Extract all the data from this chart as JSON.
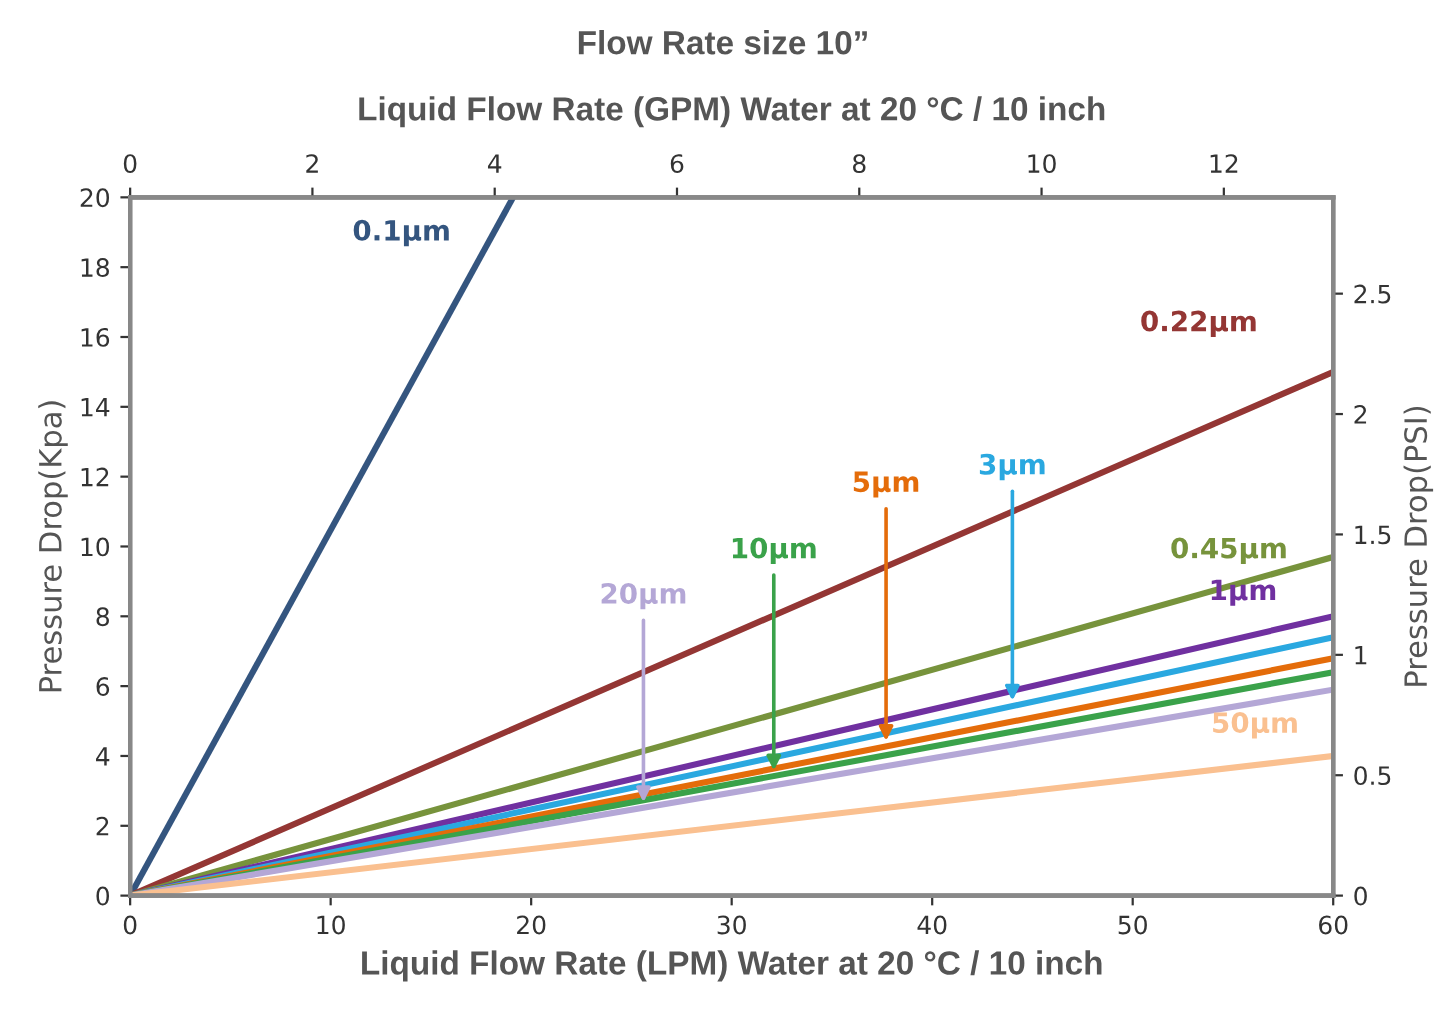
{
  "chart_data": {
    "type": "line",
    "title": "Flow Rate size 10”",
    "x2label": "Liquid Flow Rate (GPM) Water at 20 °C / 10 inch",
    "xlabel": "Liquid Flow Rate (LPM) Water at 20 °C / 10 inch",
    "ylabel": "Pressure Drop(Kpa)",
    "y2label": "Pressure Drop(PSI)",
    "xlim": [
      0,
      60
    ],
    "xticks": [
      0,
      10,
      20,
      30,
      40,
      50,
      60
    ],
    "ylim": [
      0,
      20
    ],
    "yticks": [
      0,
      2,
      4,
      6,
      8,
      10,
      12,
      14,
      16,
      18,
      20
    ],
    "x2lim": [
      0,
      13.2
    ],
    "x2ticks": [
      0,
      2,
      4,
      6,
      8,
      10,
      12
    ],
    "y2lim": [
      0,
      2.9
    ],
    "y2ticks": [
      0,
      0.5,
      1,
      1.5,
      2,
      2.5
    ],
    "grid": false,
    "marker": "none",
    "line_style": "solid",
    "series": [
      {
        "name": "0.1µm",
        "color": "#34557f",
        "x": [
          0,
          19.1
        ],
        "values": [
          0,
          20
        ]
      },
      {
        "name": "0.22µm",
        "color": "#943634",
        "x": [
          0,
          60
        ],
        "values": [
          0,
          15.0
        ]
      },
      {
        "name": "0.45µm",
        "color": "#77933c",
        "x": [
          0,
          60
        ],
        "values": [
          0,
          9.7
        ]
      },
      {
        "name": "1µm",
        "color": "#7030a0",
        "x": [
          0,
          60
        ],
        "values": [
          0,
          8.0
        ]
      },
      {
        "name": "3µm",
        "color": "#2aa8e0",
        "x": [
          0,
          60
        ],
        "values": [
          0,
          7.4
        ]
      },
      {
        "name": "5µm",
        "color": "#e46c0a",
        "x": [
          0,
          60
        ],
        "values": [
          0,
          6.8
        ]
      },
      {
        "name": "10µm",
        "color": "#3aa24a",
        "x": [
          0,
          60
        ],
        "values": [
          0,
          6.4
        ]
      },
      {
        "name": "20µm",
        "color": "#b4a7d6",
        "x": [
          0,
          60
        ],
        "values": [
          0,
          5.9
        ]
      },
      {
        "name": "50µm",
        "color": "#fac090",
        "x": [
          0,
          60
        ],
        "values": [
          0,
          4.0
        ]
      }
    ]
  }
}
